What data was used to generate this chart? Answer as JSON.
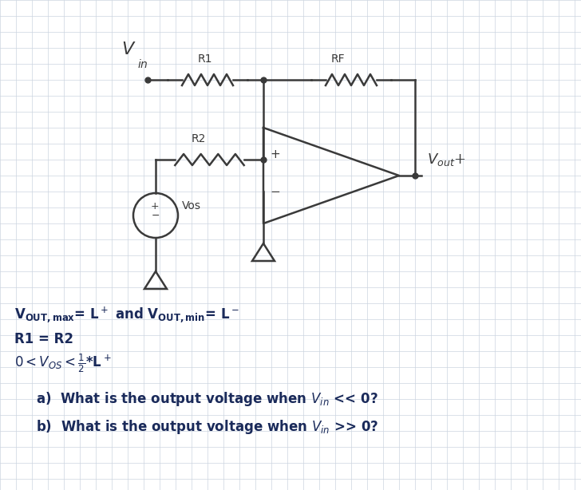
{
  "background_color": "#ffffff",
  "grid_color": "#ccd5e0",
  "line_color": "#3a3a3a",
  "text_color": "#1a2a5a",
  "circuit": {
    "vin_label": "V",
    "vin_sub": "in",
    "r1_label": "R1",
    "rf_label": "RF",
    "r2_label": "R2",
    "vos_label": "Vos",
    "vout_label": "Vout+",
    "plus_sym": "+",
    "minus_sym": "-"
  },
  "annotations": [
    "V_{OUT,max}= L^+ and V_{OUT,min}= L^-",
    "R1 = R2",
    "0 < V_{OS}< \\frac{1}{2}*L^+"
  ],
  "questions": [
    "a)  What is the output voltage when V_{in} << 0?",
    "b)  What is the output voltage when V_{in} >> 0?"
  ]
}
